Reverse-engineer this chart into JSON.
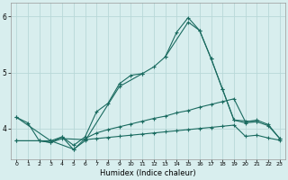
{
  "xlabel": "Humidex (Indice chaleur)",
  "bg_color": "#d8eeee",
  "grid_color": "#b8d8d8",
  "line_color": "#1a6b60",
  "ylim": [
    3.45,
    6.25
  ],
  "xlim": [
    -0.5,
    23.5
  ],
  "yticks": [
    4,
    5,
    6
  ],
  "xticks": [
    0,
    1,
    2,
    3,
    4,
    5,
    6,
    7,
    8,
    9,
    10,
    11,
    12,
    13,
    14,
    15,
    16,
    17,
    18,
    19,
    20,
    21,
    22,
    23
  ],
  "series1": [
    4.2,
    4.1,
    3.78,
    3.78,
    3.85,
    3.7,
    3.85,
    4.3,
    4.45,
    4.8,
    4.95,
    4.98,
    5.1,
    5.28,
    5.72,
    5.98,
    5.75,
    5.25,
    4.7,
    4.15,
    4.1,
    4.12,
    4.05,
    3.82
  ],
  "series2_x": [
    0,
    3,
    5,
    6,
    9,
    11
  ],
  "series2_y": [
    4.2,
    3.78,
    3.63,
    3.78,
    4.75,
    4.98
  ],
  "series3_x": [
    13,
    15,
    16,
    17,
    18,
    19,
    21
  ],
  "series3_y": [
    5.28,
    5.9,
    5.75,
    5.25,
    4.7,
    4.15,
    4.12
  ],
  "series4_x": [
    0,
    2,
    3,
    4,
    5,
    6,
    7,
    8,
    9,
    10,
    11,
    12,
    13,
    14,
    15,
    16,
    17,
    18,
    19,
    20,
    21,
    22,
    23
  ],
  "series4_y": [
    3.78,
    3.78,
    3.75,
    3.85,
    3.62,
    3.82,
    3.92,
    3.98,
    4.03,
    4.08,
    4.13,
    4.18,
    4.22,
    4.28,
    4.32,
    4.38,
    4.43,
    4.48,
    4.53,
    4.12,
    4.15,
    4.07,
    3.82
  ],
  "series5_x": [
    0,
    2,
    3,
    4,
    6,
    7,
    8,
    9,
    10,
    11,
    12,
    13,
    14,
    15,
    16,
    17,
    18,
    19,
    20,
    21,
    22,
    23
  ],
  "series5_y": [
    3.78,
    3.78,
    3.75,
    3.82,
    3.8,
    3.82,
    3.84,
    3.86,
    3.88,
    3.9,
    3.92,
    3.94,
    3.96,
    3.98,
    4.0,
    4.02,
    4.04,
    4.06,
    3.86,
    3.88,
    3.83,
    3.79
  ]
}
